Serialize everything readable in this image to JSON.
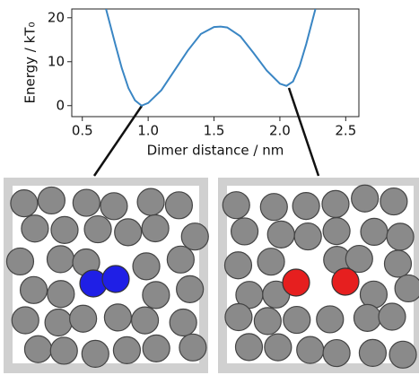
{
  "chart_data": {
    "type": "line",
    "xlabel": "Dimer distance / nm",
    "ylabel": "Energy / kT₀",
    "x": [
      0.68,
      0.75,
      0.8,
      0.85,
      0.9,
      0.95,
      1.0,
      1.1,
      1.2,
      1.3,
      1.4,
      1.5,
      1.55,
      1.6,
      1.7,
      1.8,
      1.9,
      2.0,
      2.05,
      2.1,
      2.15,
      2.2,
      2.27
    ],
    "series": [
      {
        "color": "#3a86c4",
        "values": [
          22,
          14,
          8.5,
          4,
          1.2,
          0,
          0.6,
          3.5,
          8,
          12.5,
          16.3,
          17.9,
          18,
          17.8,
          15.8,
          12,
          8,
          5,
          4.5,
          5.5,
          9,
          14,
          22
        ]
      }
    ],
    "xlim": [
      0.42,
      2.6
    ],
    "ylim": [
      -2.5,
      22
    ],
    "xticks": [
      0.5,
      {
        "value": 1,
        "label": "1.0"
      },
      1.5,
      {
        "value": 2,
        "label": "2.0"
      },
      2.5
    ],
    "yticks": [
      0,
      10,
      20
    ]
  }
}
